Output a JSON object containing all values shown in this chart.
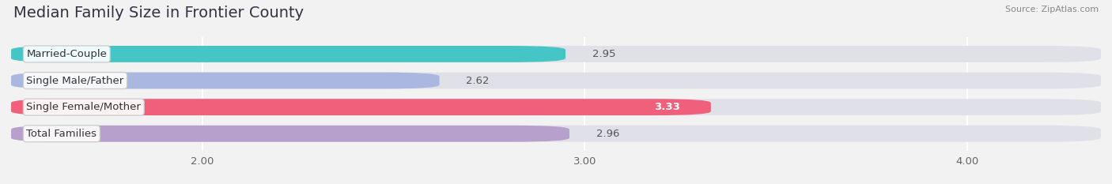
{
  "title": "Median Family Size in Frontier County",
  "source": "Source: ZipAtlas.com",
  "categories": [
    "Married-Couple",
    "Single Male/Father",
    "Single Female/Mother",
    "Total Families"
  ],
  "values": [
    2.95,
    2.62,
    3.33,
    2.96
  ],
  "bar_colors": [
    "#45c5c5",
    "#aab8e0",
    "#f0607a",
    "#b8a0cc"
  ],
  "bar_bg_color": "#e0e0e8",
  "xmin": 1.5,
  "xlim": [
    1.5,
    4.35
  ],
  "xticks": [
    2.0,
    3.0,
    4.0
  ],
  "xtick_labels": [
    "2.00",
    "3.00",
    "4.00"
  ],
  "title_fontsize": 14,
  "label_fontsize": 9.5,
  "value_fontsize": 9.5,
  "bar_height": 0.62,
  "background_color": "#f2f2f2"
}
